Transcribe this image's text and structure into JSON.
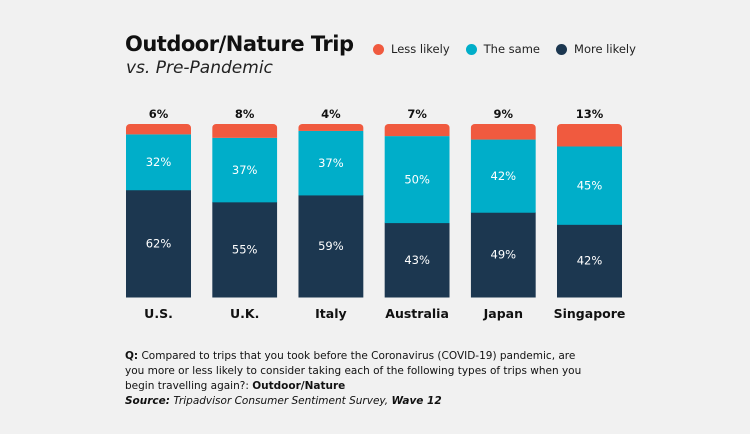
{
  "header": {
    "title": "Outdoor/Nature Trip",
    "subtitle": "vs. Pre-Pandemic"
  },
  "legend": [
    {
      "label": "Less likely",
      "color": "#f05a3f"
    },
    {
      "label": "The same",
      "color": "#00aec9"
    },
    {
      "label": "More likely",
      "color": "#1c3750"
    }
  ],
  "footnote": {
    "q_label": "Q:",
    "question": " Compared to trips that you took before the Coronavirus (COVID-19) pandemic, are you more or less likely to consider taking each of the following types of trips when you begin travelling again?: ",
    "question_bold": "Outdoor/Nature",
    "source_label": "Source:",
    "source_text": " Tripadvisor Consumer Sentiment Survey, ",
    "source_bold": "Wave 12"
  },
  "chart_data": {
    "type": "bar",
    "stacked": true,
    "title": "Outdoor/Nature Trip",
    "subtitle": "vs. Pre-Pandemic",
    "xlabel": "",
    "ylabel": "",
    "ylim": [
      0,
      100
    ],
    "grid": false,
    "legend_position": "top-right",
    "categories": [
      "U.S.",
      "U.K.",
      "Italy",
      "Australia",
      "Japan",
      "Singapore"
    ],
    "series": [
      {
        "name": "More likely",
        "color": "#1c3750",
        "values": [
          62,
          55,
          59,
          43,
          49,
          42
        ]
      },
      {
        "name": "The same",
        "color": "#00aec9",
        "values": [
          32,
          37,
          37,
          50,
          42,
          45
        ]
      },
      {
        "name": "Less likely",
        "color": "#f05a3f",
        "values": [
          6,
          8,
          4,
          7,
          9,
          13
        ]
      }
    ]
  }
}
